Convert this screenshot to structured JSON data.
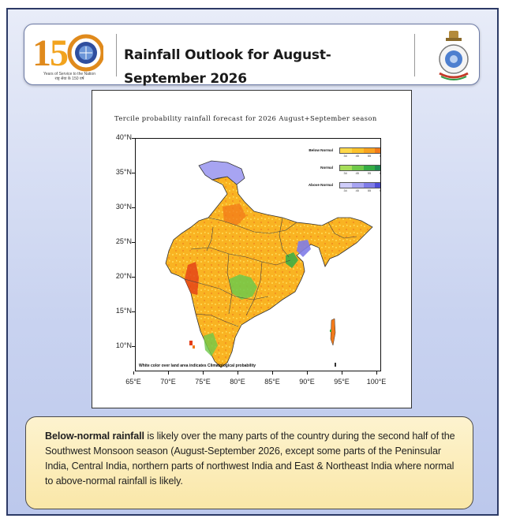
{
  "header": {
    "title": "Rainfall Outlook for August-September 2026",
    "logo_text": "150",
    "logo_caption": "Years of Service to the Nation",
    "logo_caption_hindi": "राष्ट्र सेवा के 150 वर्ष"
  },
  "map": {
    "title": "Tercile probability rainfall forecast for 2026 August+September  season",
    "y_ticks": [
      "40°N",
      "35°N",
      "30°N",
      "25°N",
      "20°N",
      "15°N",
      "10°N"
    ],
    "x_ticks": [
      "65°E",
      "70°E",
      "75°E",
      "80°E",
      "85°E",
      "90°E",
      "95°E",
      "100°E"
    ],
    "footnote": "White color over land area indicates Climatological probability",
    "legend": [
      {
        "name": "Below Normal",
        "colors": [
          "#ffd84a",
          "#fdc22c",
          "#f9a31f",
          "#f27a1a",
          "#e43d16"
        ],
        "ticks": [
          "34",
          "45",
          "55",
          "65",
          "75"
        ]
      },
      {
        "name": "Normal",
        "colors": [
          "#a6de5a",
          "#6fc94a",
          "#35ad45",
          "#1e8c52",
          "#0e6f55"
        ],
        "ticks": [
          "34",
          "45",
          "55",
          "65",
          "75"
        ]
      },
      {
        "name": "Above Normal",
        "colors": [
          "#cfcdfa",
          "#a7a4f2",
          "#7f7ce8",
          "#4f4ed6",
          "#1c24b4"
        ],
        "ticks": [
          "34",
          "45",
          "55",
          "65",
          "75"
        ]
      }
    ]
  },
  "info": {
    "seg1": "Below-normal rainfall",
    "seg2": " is likely over the many parts of the country during the second half of the Southwest Monsoon season (August-September 2026,",
    "seg3": " except some parts of the Peninsular India, Central India, northern parts of northwest India and  East & Northeast India where normal to above-normal rainfall is likely."
  },
  "colors": {
    "below_normal": "#f9b322",
    "normal": "#35ad45",
    "above_normal": "#8c89ea",
    "frame": "#2c3a66"
  }
}
